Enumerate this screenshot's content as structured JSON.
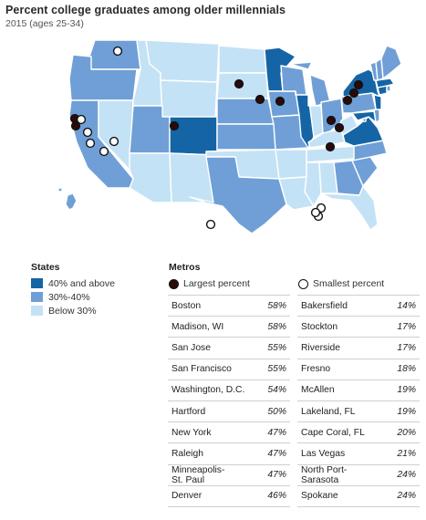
{
  "title": "Percent college graduates among older millennials",
  "subtitle": "2015 (ages 25-34)",
  "colors": {
    "high": "#1565a6",
    "mid": "#6f9fd6",
    "low": "#c4e2f5",
    "border": "#ffffff",
    "dot_dark": "#2a0a0a",
    "dot_white": "#ffffff"
  },
  "states_legend": {
    "heading": "States",
    "items": [
      {
        "label": "40% and above",
        "color": "#1565a6"
      },
      {
        "label": "30%-40%",
        "color": "#6f9fd6"
      },
      {
        "label": "Below 30%",
        "color": "#c4e2f5"
      }
    ]
  },
  "metros": {
    "heading": "Metros",
    "largest_label": "Largest percent",
    "smallest_label": "Smallest percent",
    "largest": [
      {
        "city": "Boston",
        "pct": "58%"
      },
      {
        "city": "Madison, WI",
        "pct": "58%"
      },
      {
        "city": "San Jose",
        "pct": "55%"
      },
      {
        "city": "San Francisco",
        "pct": "55%"
      },
      {
        "city": "Washington, D.C.",
        "pct": "54%"
      },
      {
        "city": "Hartford",
        "pct": "50%"
      },
      {
        "city": "New York",
        "pct": "47%"
      },
      {
        "city": "Raleigh",
        "pct": "47%"
      },
      {
        "city": "Minneapolis-\nSt. Paul",
        "pct": "47%"
      },
      {
        "city": "Denver",
        "pct": "46%"
      }
    ],
    "smallest": [
      {
        "city": "Bakersfield",
        "pct": "14%"
      },
      {
        "city": "Stockton",
        "pct": "17%"
      },
      {
        "city": "Riverside",
        "pct": "17%"
      },
      {
        "city": "Fresno",
        "pct": "18%"
      },
      {
        "city": "McAllen",
        "pct": "19%"
      },
      {
        "city": "Lakeland, FL",
        "pct": "19%"
      },
      {
        "city": "Cape Coral, FL",
        "pct": "20%"
      },
      {
        "city": "Las Vegas",
        "pct": "21%"
      },
      {
        "city": "North Port-\nSarasota",
        "pct": "24%"
      },
      {
        "city": "Spokane",
        "pct": "24%"
      }
    ]
  },
  "state_levels": {
    "WA": "mid",
    "OR": "mid",
    "CA": "mid",
    "NV": "low",
    "ID": "low",
    "MT": "low",
    "WY": "low",
    "UT": "mid",
    "AZ": "low",
    "CO": "high",
    "NM": "low",
    "ND": "low",
    "SD": "low",
    "NE": "mid",
    "KS": "mid",
    "OK": "low",
    "TX": "mid",
    "MN": "high",
    "IA": "mid",
    "MO": "mid",
    "AR": "low",
    "LA": "low",
    "WI": "mid",
    "IL": "high",
    "IN": "low",
    "MI": "mid",
    "OH": "mid",
    "KY": "low",
    "TN": "low",
    "MS": "low",
    "AL": "low",
    "GA": "mid",
    "FL": "low",
    "SC": "mid",
    "NC": "mid",
    "VA": "high",
    "WV": "low",
    "MD": "high",
    "DE": "mid",
    "PA": "mid",
    "NY": "high",
    "NJ": "high",
    "CT": "high",
    "RI": "mid",
    "MA": "high",
    "VT": "mid",
    "NH": "mid",
    "ME": "mid",
    "HI": "mid",
    "DC": "high"
  }
}
